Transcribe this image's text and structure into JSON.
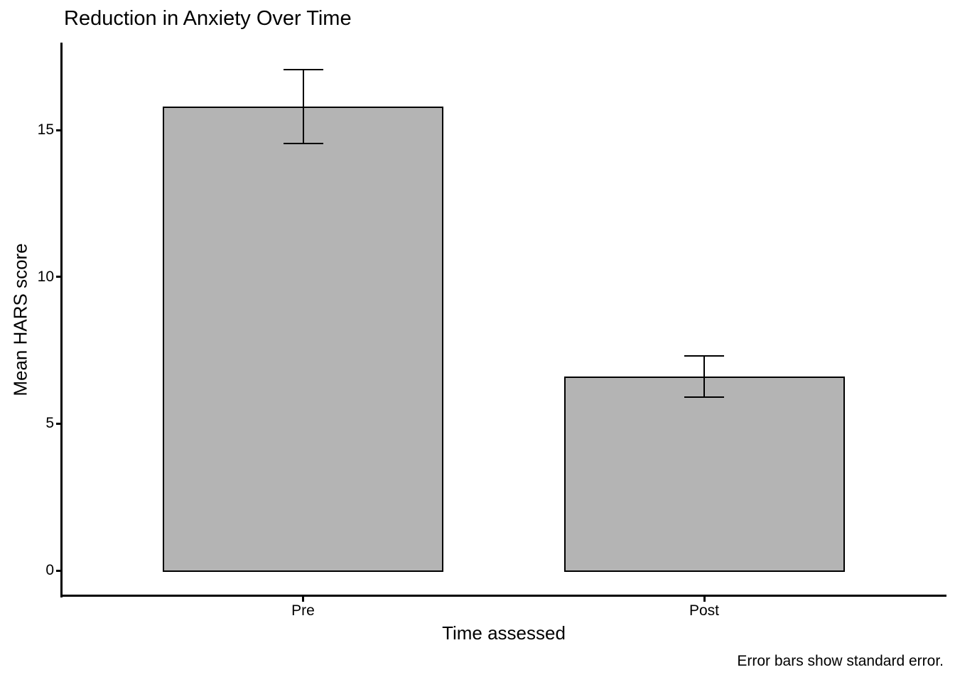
{
  "title": "Reduction in Anxiety Over Time",
  "caption": "Error bars show standard error.",
  "colors": {
    "background": "#ffffff",
    "bar_fill": "#b4b4b4",
    "bar_border": "#000000",
    "axis": "#000000",
    "text": "#000000"
  },
  "chart_data": {
    "type": "bar",
    "title": "Reduction in Anxiety Over Time",
    "xlabel": "Time assessed",
    "ylabel": "Mean HARS score",
    "categories": [
      "Pre",
      "Post"
    ],
    "values": [
      15.8,
      6.6
    ],
    "standard_errors": [
      1.25,
      0.7
    ],
    "error_bars": "standard error",
    "yticks": [
      0,
      5,
      10,
      15
    ],
    "ylim": [
      -0.9,
      18
    ],
    "grid": false,
    "legend": "none",
    "caption": "Error bars show standard error."
  }
}
